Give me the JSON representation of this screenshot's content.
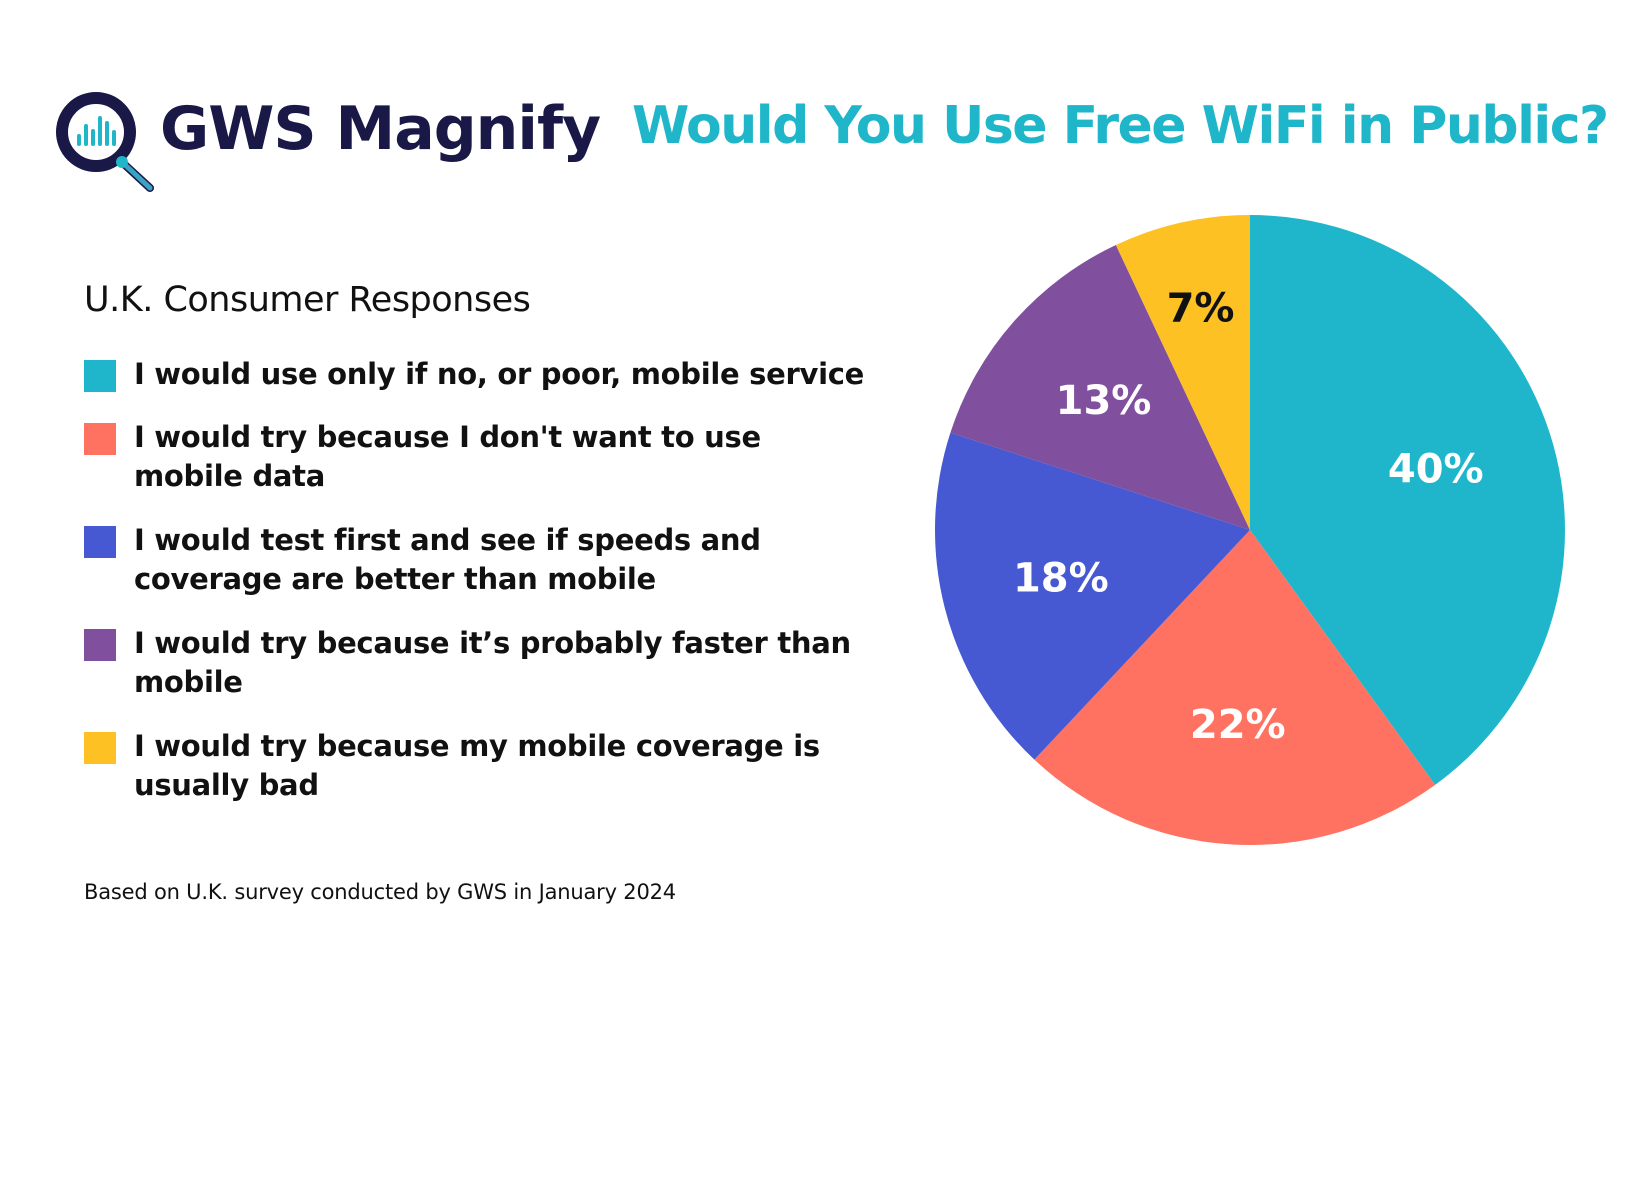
{
  "brand": {
    "name": "GWS Magnify",
    "color": "#1a1846",
    "accent": "#1fb6c9"
  },
  "chart_data": {
    "type": "pie",
    "title": "Would You Use Free WiFi in Public?",
    "legend_title": "U.K. Consumer Responses",
    "legend_position": "left",
    "slices": [
      {
        "label": "I would use only if no, or poor, mobile service",
        "value": 40,
        "display": "40%",
        "color": "#1fb6cc",
        "text_color": "#ffffff"
      },
      {
        "label": "I would try because I don't want to use mobile data",
        "value": 22,
        "display": "22%",
        "color": "#ff7262",
        "text_color": "#ffffff"
      },
      {
        "label": "I would test first and see if speeds and coverage are better than mobile",
        "value": 18,
        "display": "18%",
        "color": "#4659d3",
        "text_color": "#ffffff"
      },
      {
        "label": "I would try because it’s probably faster than mobile",
        "value": 13,
        "display": "13%",
        "color": "#804f9e",
        "text_color": "#ffffff"
      },
      {
        "label": "I would try because my mobile coverage is usually bad",
        "value": 7,
        "display": "7%",
        "color": "#fec124",
        "text_color": "#111111"
      }
    ]
  },
  "footnote": "Based on U.K. survey conducted by GWS in January 2024"
}
